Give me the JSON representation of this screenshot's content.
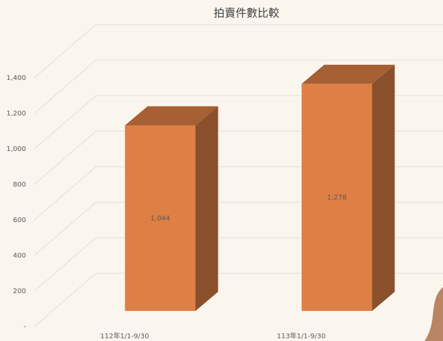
{
  "chart_data": {
    "type": "bar3d",
    "title": "拍賣件數比較",
    "categories": [
      "112年1/1-9/30",
      "113年1/1-9/30"
    ],
    "values": [
      1044,
      1278
    ],
    "value_labels": [
      "1,044",
      "1,278"
    ],
    "color": "#de7f45",
    "ylim": [
      0,
      1400
    ],
    "yticks": [
      {
        "value": 0,
        "label": "-"
      },
      200,
      400,
      600,
      800,
      {
        "value": 1000,
        "label": "1,000"
      },
      {
        "value": 1200,
        "label": "1,200"
      },
      {
        "value": 1400,
        "label": "1,400"
      }
    ],
    "grid": true
  }
}
